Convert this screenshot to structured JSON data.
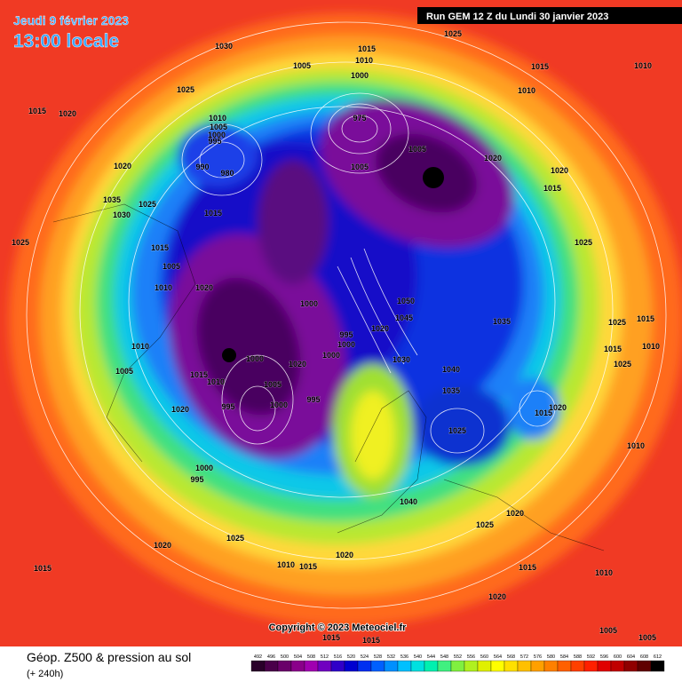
{
  "header": {
    "date": "Jeudi 9 février 2023",
    "time": "13:00 locale",
    "run": "Run GEM 12 Z du Lundi 30 janvier 2023"
  },
  "copyright": "Copyright © 2023 Meteociel.fr",
  "legend": {
    "title": "Géop. Z500 & pression au sol",
    "subtitle": "(+ 240h)",
    "values": [
      492,
      496,
      500,
      504,
      508,
      512,
      516,
      520,
      524,
      528,
      532,
      536,
      540,
      544,
      548,
      552,
      556,
      560,
      564,
      568,
      572,
      576,
      580,
      584,
      588,
      592,
      596,
      600,
      604,
      608,
      612
    ],
    "colors": [
      "#2a002a",
      "#4a004a",
      "#6a006a",
      "#8a008a",
      "#a000b0",
      "#7000c0",
      "#3000c8",
      "#0000d0",
      "#0030f0",
      "#0060ff",
      "#0090ff",
      "#00c0ff",
      "#00e0e0",
      "#00f0b0",
      "#40f080",
      "#80f040",
      "#b0f020",
      "#e0f000",
      "#ffff00",
      "#ffe000",
      "#ffc000",
      "#ffa000",
      "#ff8000",
      "#ff6000",
      "#ff4000",
      "#ff2000",
      "#e00000",
      "#c00000",
      "#900000",
      "#600000",
      "#000000"
    ]
  },
  "pressure_labels": [
    "1030",
    "1015",
    "1010",
    "1025",
    "1005",
    "1015",
    "1010",
    "1025",
    "1000",
    "1010",
    "1015",
    "1020",
    "1010",
    "1005",
    "1000",
    "995",
    "975",
    "1005",
    "1005",
    "1020",
    "1020",
    "1015",
    "1020",
    "990",
    "980",
    "1035",
    "1025",
    "1030",
    "1015",
    "1025",
    "1025",
    "1015",
    "1005",
    "1010",
    "1020",
    "1000",
    "1050",
    "1045",
    "1035",
    "1025",
    "1015",
    "1020",
    "995",
    "1000",
    "1010",
    "1015",
    "1010",
    "1000",
    "1000",
    "1020",
    "1030",
    "1025",
    "1005",
    "1015",
    "1040",
    "1010",
    "1005",
    "1035",
    "995",
    "1000",
    "1015",
    "1020",
    "995",
    "1020",
    "1025",
    "1010",
    "1000",
    "995",
    "1040",
    "1020",
    "1025",
    "1025",
    "1020",
    "1020",
    "1010",
    "1015",
    "1015",
    "1015",
    "1010",
    "1020",
    "1005",
    "1015",
    "1015",
    "1005"
  ]
}
